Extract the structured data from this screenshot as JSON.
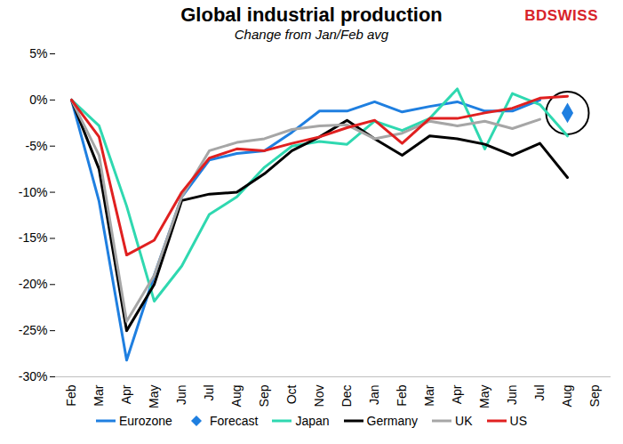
{
  "chart_data": {
    "type": "line",
    "title": "Global industrial production",
    "subtitle": "Change from Jan/Feb avg",
    "logo": "BDSWISS",
    "categories": [
      "Feb",
      "Mar",
      "Apr",
      "May",
      "Jun",
      "Jul",
      "Aug",
      "Sep",
      "Oct",
      "Nov",
      "Dec",
      "Jan",
      "Feb",
      "Mar",
      "Apr",
      "May",
      "Jun",
      "Jul",
      "Aug",
      "Sep"
    ],
    "ylim": [
      -30,
      5
    ],
    "yticks": [
      {
        "value": -30,
        "label": "-30%"
      },
      {
        "value": -25,
        "label": "-25%"
      },
      {
        "value": -20,
        "label": "-20%"
      },
      {
        "value": -15,
        "label": "-15%"
      },
      {
        "value": -10,
        "label": "-10%"
      },
      {
        "value": -5,
        "label": "-5%"
      },
      {
        "value": 0,
        "label": "0%"
      },
      {
        "value": 5,
        "label": "5%"
      }
    ],
    "grid": false,
    "legend": "bottom",
    "series": [
      {
        "name": "Eurozone",
        "type": "line",
        "color": "#1f7fe0",
        "values": [
          0,
          -11,
          -28.2,
          -19,
          -10.5,
          -6.5,
          -5.8,
          -5.5,
          -3.5,
          -1.2,
          -1.2,
          -0.2,
          -1.3,
          -0.7,
          -0.2,
          -1.2,
          -1.2,
          0,
          null,
          null
        ]
      },
      {
        "name": "Forecast",
        "type": "scatter",
        "marker": "diamond",
        "color": "#1f7fe0",
        "values": [
          null,
          null,
          null,
          null,
          null,
          null,
          null,
          null,
          null,
          null,
          null,
          null,
          null,
          null,
          null,
          null,
          null,
          null,
          -1.4,
          null
        ]
      },
      {
        "name": "Japan",
        "type": "line",
        "color": "#2fd8b0",
        "values": [
          0,
          -2.8,
          -11.5,
          -21.8,
          -18,
          -12.4,
          -10.5,
          -7.3,
          -5,
          -4.5,
          -4.8,
          -2.3,
          -3.3,
          -2,
          1.2,
          -5.3,
          0.7,
          -0.5,
          -3.9,
          null
        ]
      },
      {
        "name": "Germany",
        "type": "line",
        "color": "#000000",
        "values": [
          0,
          -7.5,
          -25,
          -20,
          -10.9,
          -10.2,
          -10,
          -8,
          -5.5,
          -4,
          -2.2,
          -4.2,
          -6,
          -3.9,
          -4.2,
          -4.8,
          -6,
          -4.7,
          -8.4,
          null
        ]
      },
      {
        "name": "UK",
        "type": "line",
        "color": "#a6a6a6",
        "values": [
          0,
          -6,
          -24,
          -19,
          -10.5,
          -5.5,
          -4.6,
          -4.2,
          -3.2,
          -2.8,
          -2.7,
          -4.2,
          -3.6,
          -2.3,
          -2.8,
          -2.3,
          -3.1,
          -2.1,
          null,
          null
        ]
      },
      {
        "name": "US",
        "type": "line",
        "color": "#e02020",
        "values": [
          0,
          -4,
          -16.8,
          -15.2,
          -10,
          -6.3,
          -5.3,
          -5.5,
          -4.7,
          -4,
          -3,
          -2.2,
          -4.7,
          -2,
          -2,
          -1.4,
          -0.9,
          0.2,
          0.4,
          null
        ]
      }
    ]
  }
}
